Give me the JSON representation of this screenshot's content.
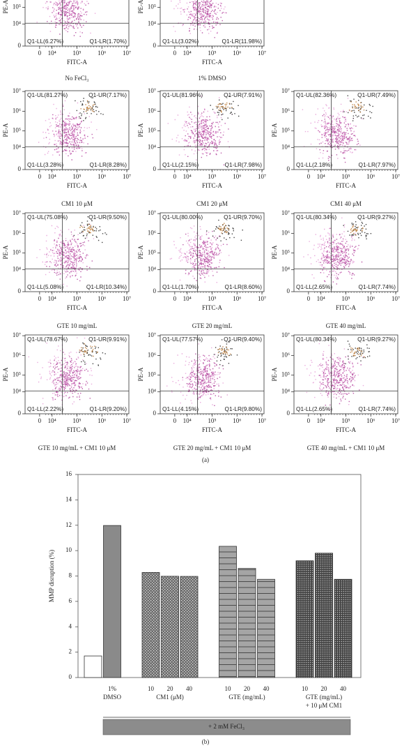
{
  "figure_a": {
    "label": "(a)",
    "flow_axes": {
      "x_label": "FITC-A",
      "y_label": "PE-A",
      "x_ticks": [
        "0",
        "10⁴",
        "10⁵",
        "10⁶",
        "10⁷"
      ],
      "y_ticks": [
        "0",
        "10⁴",
        "10⁵",
        "10⁶",
        "10⁷"
      ]
    },
    "panels": [
      {
        "caption": "No FeCl₃",
        "quadrants": {
          "LL": "Q1-LL(6.27%)",
          "LR": "Q1-LR(1.70%)"
        }
      },
      {
        "caption": "1% DMSO",
        "quadrants": {
          "LL": "Q1-LL(3.02%)",
          "LR": "Q1-LR(11.98%)"
        }
      },
      {
        "caption": "CM1 10 μM",
        "quadrants": {
          "UL": "Q1-UL(81.27%)",
          "UR": "Q1-UR(7.17%)",
          "LL": "Q1-LL(3.28%)",
          "LR": "Q1-LR(8.28%)"
        }
      },
      {
        "caption": "CM1 20 μM",
        "quadrants": {
          "UL": "Q1-UL(81.96%)",
          "UR": "Q1-UR(7.91%)",
          "LL": "Q1-LL(2.15%)",
          "LR": "Q1-LR(7.98%)"
        }
      },
      {
        "caption": "CM1 40 μM",
        "quadrants": {
          "UL": "Q1-UL(82.36%)",
          "UR": "Q1-UR(7.49%)",
          "LL": "Q1-LL(2.18%)",
          "LR": "Q1-LR(7.97%)"
        }
      },
      {
        "caption": "GTE 10 mg/mL",
        "quadrants": {
          "UL": "Q1-UL(75.08%)",
          "UR": "Q1-UR(9.50%)",
          "LL": "Q1-LL(5.08%)",
          "LR": "Q1-LR(10.34%)"
        }
      },
      {
        "caption": "GTE 20 mg/mL",
        "quadrants": {
          "UL": "Q1-UL(80.00%)",
          "UR": "Q1-UR(9.70%)",
          "LL": "Q1-LL(1.70%)",
          "LR": "Q1-LR(8.60%)"
        }
      },
      {
        "caption": "GTE 40 mg/mL",
        "quadrants": {
          "UL": "Q1-UL(80.34%)",
          "UR": "Q1-UR(9.27%)",
          "LL": "Q1-LL(2.65%)",
          "LR": "Q1-LR(7.74%)"
        }
      },
      {
        "caption": "GTE 10 mg/mL + CM1 10 μM",
        "quadrants": {
          "UL": "Q1-UL(78.67%)",
          "UR": "Q1-UR(9.91%)",
          "LL": "Q1-LL(2.22%)",
          "LR": "Q1-LR(9.20%)"
        }
      },
      {
        "caption": "GTE 20 mg/mL + CM1 10 μM",
        "quadrants": {
          "UL": "Q1-UL(77.57%)",
          "UR": "Q1-UR(9.40%)",
          "LL": "Q1-LL(4.15%)",
          "LR": "Q1-LR(9.80%)"
        }
      },
      {
        "caption": "GTE 40 mg/mL + CM1 10 μM",
        "quadrants": {
          "UL": "Q1-UL(80.34%)",
          "UR": "Q1-UR(9.27%)",
          "LL": "Q1-LL(2.65%)",
          "LR": "Q1-LR(7.74%)"
        }
      }
    ]
  },
  "chart_data": {
    "type": "bar",
    "label": "(b)",
    "ylabel": "MMP disruption (%)",
    "ylim": [
      0,
      16
    ],
    "yticks": [
      0,
      2,
      4,
      6,
      8,
      10,
      12,
      14,
      16
    ],
    "bracket_label": "+ 2 mM FeCl₃",
    "groups": [
      {
        "categories": [
          null
        ],
        "values": [
          1.7
        ],
        "color": "#ffffff"
      },
      {
        "name": [
          "DMSO"
        ],
        "categories": [
          "1%"
        ],
        "values": [
          11.98
        ],
        "color": "#8a8a8a"
      },
      {
        "name": [
          "CM1 (μM)"
        ],
        "categories": [
          "10",
          "20",
          "40"
        ],
        "values": [
          8.28,
          7.98,
          7.97
        ],
        "pattern": "stipple"
      },
      {
        "name": [
          "GTE (mg/mL)"
        ],
        "categories": [
          "10",
          "20",
          "40"
        ],
        "values": [
          10.34,
          8.6,
          7.74
        ],
        "pattern": "horizontal-lines"
      },
      {
        "name": [
          "GTE (mg/mL)",
          "+ 10 μM CM1"
        ],
        "categories": [
          "10",
          "20",
          "40"
        ],
        "values": [
          9.2,
          9.8,
          7.74
        ],
        "pattern": "dots"
      }
    ]
  }
}
